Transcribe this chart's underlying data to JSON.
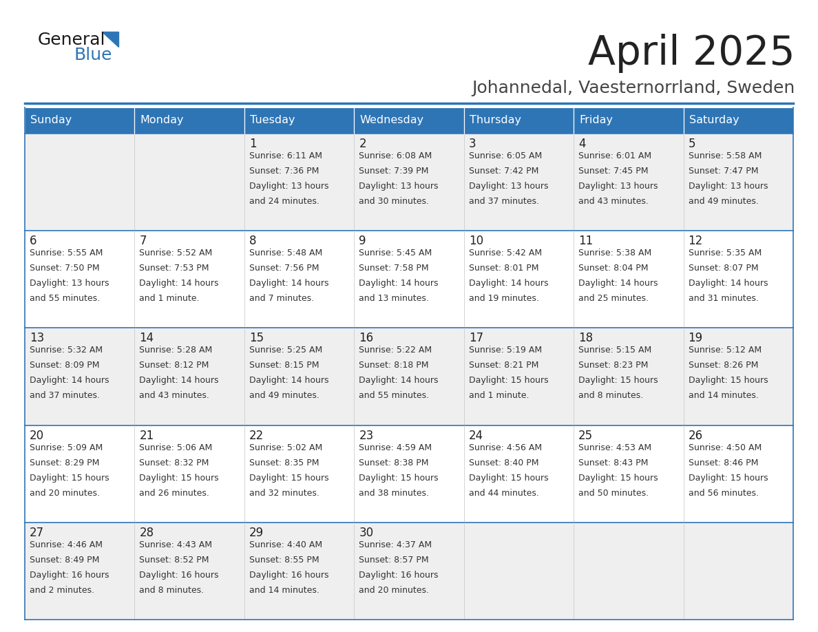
{
  "title": "April 2025",
  "subtitle": "Johannedal, Vaesternorrland, Sweden",
  "header_bg": "#2E75B6",
  "header_text": "#FFFFFF",
  "cell_bg_light": "#EFEFEF",
  "cell_bg_white": "#FFFFFF",
  "border_color": "#2E75B6",
  "border_light": "#AAAAAA",
  "day_names": [
    "Sunday",
    "Monday",
    "Tuesday",
    "Wednesday",
    "Thursday",
    "Friday",
    "Saturday"
  ],
  "title_color": "#222222",
  "subtitle_color": "#444444",
  "number_color": "#222222",
  "info_color": "#333333",
  "logo_general_color": "#1a1a1a",
  "logo_blue_color": "#2E75B6",
  "weeks": [
    [
      {
        "day": "",
        "info": ""
      },
      {
        "day": "",
        "info": ""
      },
      {
        "day": "1",
        "info": "Sunrise: 6:11 AM\nSunset: 7:36 PM\nDaylight: 13 hours\nand 24 minutes."
      },
      {
        "day": "2",
        "info": "Sunrise: 6:08 AM\nSunset: 7:39 PM\nDaylight: 13 hours\nand 30 minutes."
      },
      {
        "day": "3",
        "info": "Sunrise: 6:05 AM\nSunset: 7:42 PM\nDaylight: 13 hours\nand 37 minutes."
      },
      {
        "day": "4",
        "info": "Sunrise: 6:01 AM\nSunset: 7:45 PM\nDaylight: 13 hours\nand 43 minutes."
      },
      {
        "day": "5",
        "info": "Sunrise: 5:58 AM\nSunset: 7:47 PM\nDaylight: 13 hours\nand 49 minutes."
      }
    ],
    [
      {
        "day": "6",
        "info": "Sunrise: 5:55 AM\nSunset: 7:50 PM\nDaylight: 13 hours\nand 55 minutes."
      },
      {
        "day": "7",
        "info": "Sunrise: 5:52 AM\nSunset: 7:53 PM\nDaylight: 14 hours\nand 1 minute."
      },
      {
        "day": "8",
        "info": "Sunrise: 5:48 AM\nSunset: 7:56 PM\nDaylight: 14 hours\nand 7 minutes."
      },
      {
        "day": "9",
        "info": "Sunrise: 5:45 AM\nSunset: 7:58 PM\nDaylight: 14 hours\nand 13 minutes."
      },
      {
        "day": "10",
        "info": "Sunrise: 5:42 AM\nSunset: 8:01 PM\nDaylight: 14 hours\nand 19 minutes."
      },
      {
        "day": "11",
        "info": "Sunrise: 5:38 AM\nSunset: 8:04 PM\nDaylight: 14 hours\nand 25 minutes."
      },
      {
        "day": "12",
        "info": "Sunrise: 5:35 AM\nSunset: 8:07 PM\nDaylight: 14 hours\nand 31 minutes."
      }
    ],
    [
      {
        "day": "13",
        "info": "Sunrise: 5:32 AM\nSunset: 8:09 PM\nDaylight: 14 hours\nand 37 minutes."
      },
      {
        "day": "14",
        "info": "Sunrise: 5:28 AM\nSunset: 8:12 PM\nDaylight: 14 hours\nand 43 minutes."
      },
      {
        "day": "15",
        "info": "Sunrise: 5:25 AM\nSunset: 8:15 PM\nDaylight: 14 hours\nand 49 minutes."
      },
      {
        "day": "16",
        "info": "Sunrise: 5:22 AM\nSunset: 8:18 PM\nDaylight: 14 hours\nand 55 minutes."
      },
      {
        "day": "17",
        "info": "Sunrise: 5:19 AM\nSunset: 8:21 PM\nDaylight: 15 hours\nand 1 minute."
      },
      {
        "day": "18",
        "info": "Sunrise: 5:15 AM\nSunset: 8:23 PM\nDaylight: 15 hours\nand 8 minutes."
      },
      {
        "day": "19",
        "info": "Sunrise: 5:12 AM\nSunset: 8:26 PM\nDaylight: 15 hours\nand 14 minutes."
      }
    ],
    [
      {
        "day": "20",
        "info": "Sunrise: 5:09 AM\nSunset: 8:29 PM\nDaylight: 15 hours\nand 20 minutes."
      },
      {
        "day": "21",
        "info": "Sunrise: 5:06 AM\nSunset: 8:32 PM\nDaylight: 15 hours\nand 26 minutes."
      },
      {
        "day": "22",
        "info": "Sunrise: 5:02 AM\nSunset: 8:35 PM\nDaylight: 15 hours\nand 32 minutes."
      },
      {
        "day": "23",
        "info": "Sunrise: 4:59 AM\nSunset: 8:38 PM\nDaylight: 15 hours\nand 38 minutes."
      },
      {
        "day": "24",
        "info": "Sunrise: 4:56 AM\nSunset: 8:40 PM\nDaylight: 15 hours\nand 44 minutes."
      },
      {
        "day": "25",
        "info": "Sunrise: 4:53 AM\nSunset: 8:43 PM\nDaylight: 15 hours\nand 50 minutes."
      },
      {
        "day": "26",
        "info": "Sunrise: 4:50 AM\nSunset: 8:46 PM\nDaylight: 15 hours\nand 56 minutes."
      }
    ],
    [
      {
        "day": "27",
        "info": "Sunrise: 4:46 AM\nSunset: 8:49 PM\nDaylight: 16 hours\nand 2 minutes."
      },
      {
        "day": "28",
        "info": "Sunrise: 4:43 AM\nSunset: 8:52 PM\nDaylight: 16 hours\nand 8 minutes."
      },
      {
        "day": "29",
        "info": "Sunrise: 4:40 AM\nSunset: 8:55 PM\nDaylight: 16 hours\nand 14 minutes."
      },
      {
        "day": "30",
        "info": "Sunrise: 4:37 AM\nSunset: 8:57 PM\nDaylight: 16 hours\nand 20 minutes."
      },
      {
        "day": "",
        "info": ""
      },
      {
        "day": "",
        "info": ""
      },
      {
        "day": "",
        "info": ""
      }
    ]
  ]
}
